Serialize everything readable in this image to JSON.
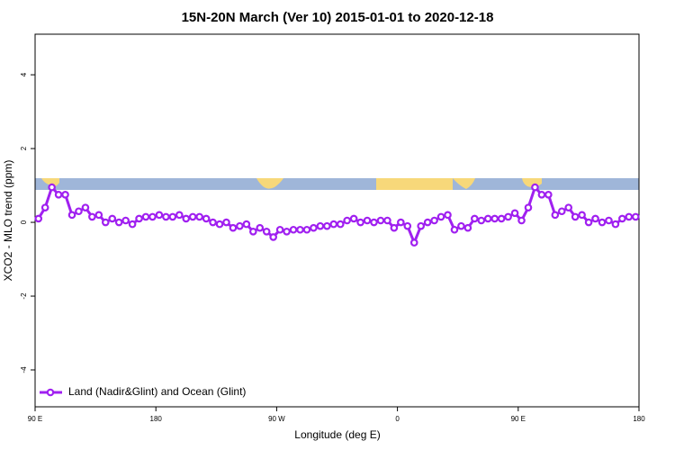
{
  "chart_data": {
    "type": "line",
    "title": "15N-20N March (Ver 10)   2015-01-01 to 2020-12-18",
    "x_label": "Longitude (deg E)",
    "y_label": "XCO2 - MLO trend (ppm)",
    "xlim": [
      90,
      540
    ],
    "ylim": [
      -5,
      5.1
    ],
    "xticks": [
      {
        "value": 90,
        "label": "90 E"
      },
      180,
      {
        "value": 270,
        "label": "90 W"
      },
      {
        "value": 360,
        "label": "0"
      },
      {
        "value": 450,
        "label": "90 E"
      },
      {
        "value": 540,
        "label": "180"
      }
    ],
    "yticks": [
      4,
      2,
      0,
      -2,
      -4
    ],
    "legend": "bottom-left",
    "x": [
      92.5,
      97.5,
      102.5,
      107.5,
      112.5,
      117.5,
      122.5,
      127.5,
      132.5,
      137.5,
      142.5,
      147.5,
      152.5,
      157.5,
      162.5,
      167.5,
      172.5,
      177.5,
      182.5,
      187.5,
      192.5,
      197.5,
      202.5,
      207.5,
      212.5,
      217.5,
      222.5,
      227.5,
      232.5,
      237.5,
      242.5,
      247.5,
      252.5,
      257.5,
      262.5,
      267.5,
      272.5,
      277.5,
      282.5,
      287.5,
      292.5,
      297.5,
      302.5,
      307.5,
      312.5,
      317.5,
      322.5,
      327.5,
      332.5,
      337.5,
      342.5,
      347.5,
      352.5,
      357.5,
      362.5,
      367.5,
      372.5,
      377.5,
      382.5,
      387.5,
      392.5,
      397.5,
      402.5,
      407.5,
      412.5,
      417.5,
      422.5,
      427.5,
      432.5,
      437.5,
      442.5,
      447.5,
      452.5,
      457.5,
      462.5,
      467.5,
      472.5,
      477.5,
      482.5,
      487.5,
      492.5,
      497.5,
      502.5,
      507.5,
      512.5,
      517.5,
      522.5,
      527.5,
      532.5,
      537.5
    ],
    "series": [
      {
        "name": "Land (Nadir&Glint) and Ocean (Glint)",
        "color": "#a020f0",
        "values": [
          0.1,
          0.4,
          0.95,
          0.75,
          0.75,
          0.2,
          0.3,
          0.4,
          0.15,
          0.2,
          0.0,
          0.1,
          0.0,
          0.05,
          -0.05,
          0.1,
          0.15,
          0.15,
          0.2,
          0.15,
          0.15,
          0.2,
          0.1,
          0.15,
          0.15,
          0.1,
          0.0,
          -0.05,
          0.0,
          -0.15,
          -0.1,
          -0.05,
          -0.25,
          -0.15,
          -0.25,
          -0.4,
          -0.2,
          -0.25,
          -0.2,
          -0.2,
          -0.2,
          -0.15,
          -0.1,
          -0.1,
          -0.05,
          -0.05,
          0.05,
          0.1,
          0.0,
          0.05,
          0.0,
          0.05,
          0.05,
          -0.15,
          0.0,
          -0.1,
          -0.55,
          -0.1,
          0.0,
          0.05,
          0.15,
          0.2,
          -0.2,
          -0.1,
          -0.15,
          0.1,
          0.05,
          0.1,
          0.1,
          0.1,
          0.15,
          0.25,
          0.05,
          0.4,
          0.95,
          0.75,
          0.75,
          0.2,
          0.3,
          0.4,
          0.15,
          0.2,
          0.0,
          0.1,
          0.0,
          0.05,
          -0.05,
          0.1,
          0.15,
          0.15
        ]
      }
    ]
  }
}
